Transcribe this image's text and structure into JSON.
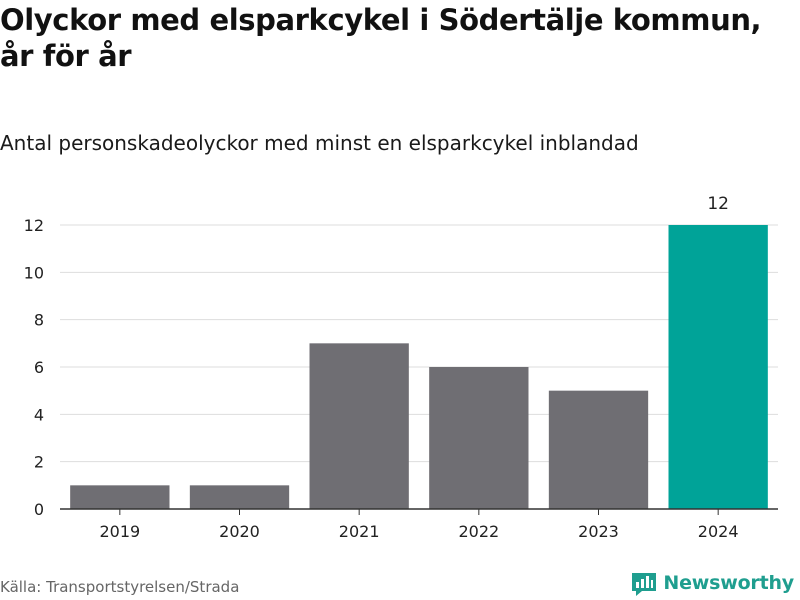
{
  "header": {
    "title_line1": "Olyckor med elsparkcykel i Södertälje kommun,",
    "title_line2": "år för år",
    "subtitle": "Antal personskadeolyckor med minst en elsparkcykel inblandad"
  },
  "footer": {
    "source": "Källa: Transportstyrelsen/Strada",
    "brand": "Newsworthy",
    "brand_icon": "newsworthy-logo-icon"
  },
  "colors": {
    "bar_default": "#6f6e73",
    "bar_highlight": "#00a398",
    "gridline": "#dddddd",
    "axis": "#333333",
    "tick_text": "#222222",
    "brand": "#1f9e8f"
  },
  "chart_data": {
    "type": "bar",
    "title": "Olyckor med elsparkcykel i Södertälje kommun, år för år",
    "subtitle": "Antal personskadeolyckor med minst en elsparkcykel inblandad",
    "xlabel": "",
    "ylabel": "",
    "categories": [
      "2019",
      "2020",
      "2021",
      "2022",
      "2023",
      "2024"
    ],
    "values": [
      1,
      1,
      7,
      6,
      5,
      12
    ],
    "highlight_index": 5,
    "data_labels": [
      {
        "index": 5,
        "text": "12"
      }
    ],
    "yticks": [
      0,
      2,
      4,
      6,
      8,
      10,
      12
    ],
    "ylim": [
      0,
      12
    ],
    "grid": true,
    "legend": "none"
  }
}
